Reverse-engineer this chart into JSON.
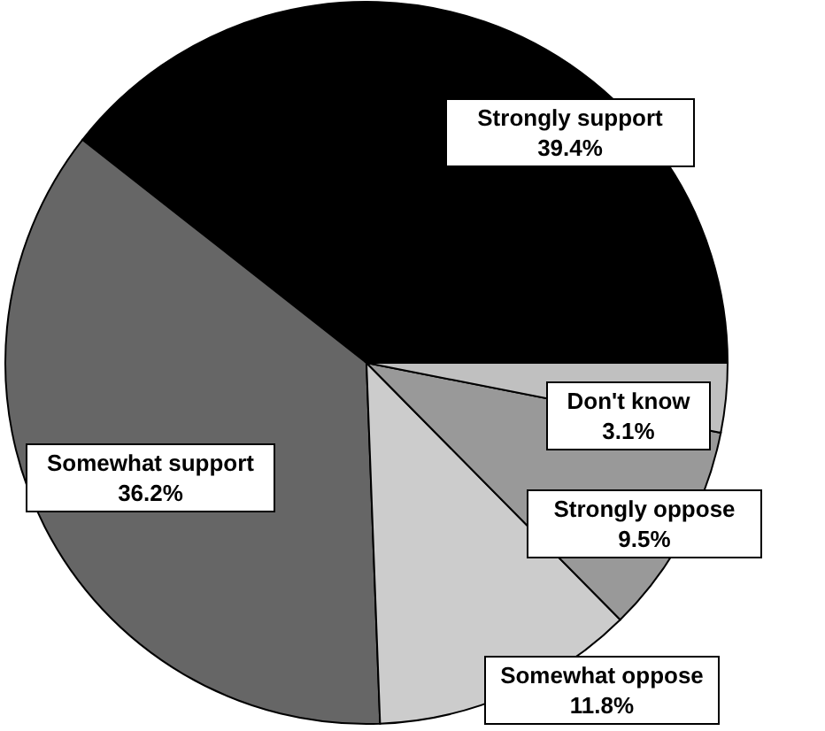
{
  "chart_data": {
    "type": "pie",
    "categories": [
      "Strongly support",
      "Somewhat support",
      "Somewhat oppose",
      "Strongly oppose",
      "Don't know"
    ],
    "values": [
      39.4,
      36.2,
      11.8,
      9.5,
      3.1
    ],
    "value_labels": [
      "39.4%",
      "36.2%",
      "11.8%",
      "9.5%",
      "3.1%"
    ],
    "colors": [
      "#000000",
      "#666666",
      "#cccccc",
      "#999999",
      "#c0c0c0"
    ],
    "legend": false
  }
}
